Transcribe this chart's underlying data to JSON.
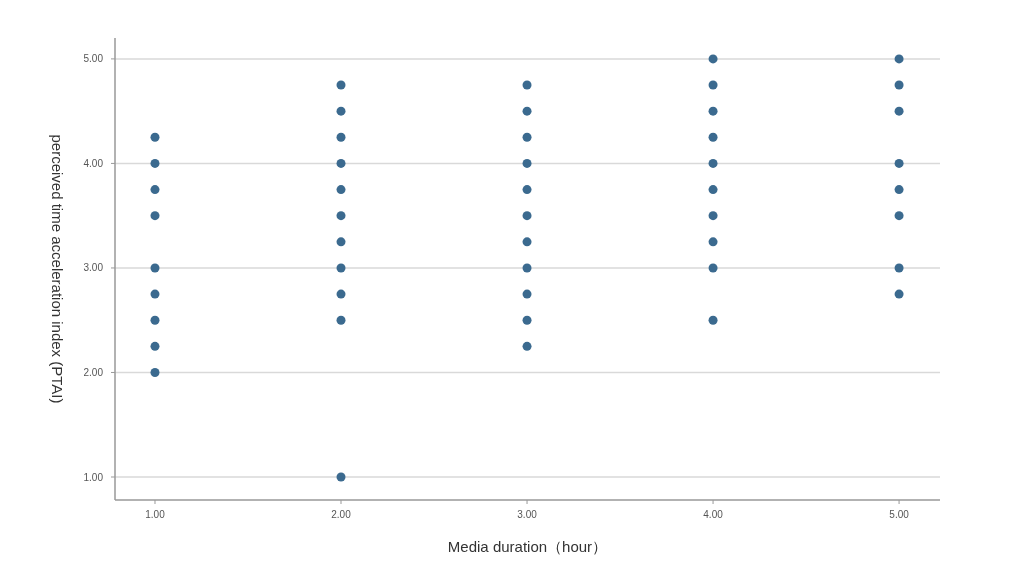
{
  "chart_data": {
    "type": "scatter",
    "xlabel": "Media duration（hour）",
    "ylabel": "perceived time acceleration index (PTAI)",
    "x": [
      1,
      1,
      1,
      1,
      1,
      1,
      1,
      1,
      1,
      2,
      2,
      2,
      2,
      2,
      2,
      2,
      2,
      2,
      2,
      2,
      3,
      3,
      3,
      3,
      3,
      3,
      3,
      3,
      3,
      3,
      3,
      4,
      4,
      4,
      4,
      4,
      4,
      4,
      4,
      4,
      4,
      5,
      5,
      5,
      5,
      5,
      5,
      5,
      5
    ],
    "values": [
      4.25,
      4.0,
      3.75,
      3.5,
      3.0,
      2.75,
      2.5,
      2.25,
      2.0,
      4.75,
      4.5,
      4.25,
      4.0,
      3.75,
      3.5,
      3.25,
      3.0,
      2.75,
      2.5,
      1.0,
      4.75,
      4.5,
      4.25,
      4.0,
      3.75,
      3.5,
      3.25,
      3.0,
      2.75,
      2.5,
      2.25,
      5.0,
      4.75,
      4.5,
      4.25,
      4.0,
      3.75,
      3.5,
      3.25,
      3.0,
      2.5,
      5.0,
      4.75,
      4.5,
      4.0,
      3.75,
      3.5,
      3.0,
      2.75
    ],
    "color": "#3b6a8f",
    "marker": "circle",
    "grid": "y",
    "xlim": [
      0.785,
      5.22
    ],
    "ylim": [
      0.78,
      5.2
    ],
    "xticks": [
      {
        "value": 1,
        "label": "1.00"
      },
      {
        "value": 2,
        "label": "2.00"
      },
      {
        "value": 3,
        "label": "3.00"
      },
      {
        "value": 4,
        "label": "4.00"
      },
      {
        "value": 5,
        "label": "5.00"
      }
    ],
    "yticks": [
      {
        "value": 1,
        "label": "1.00"
      },
      {
        "value": 2,
        "label": "2.00"
      },
      {
        "value": 3,
        "label": "3.00"
      },
      {
        "value": 4,
        "label": "4.00"
      },
      {
        "value": 5,
        "label": "5.00"
      }
    ]
  }
}
